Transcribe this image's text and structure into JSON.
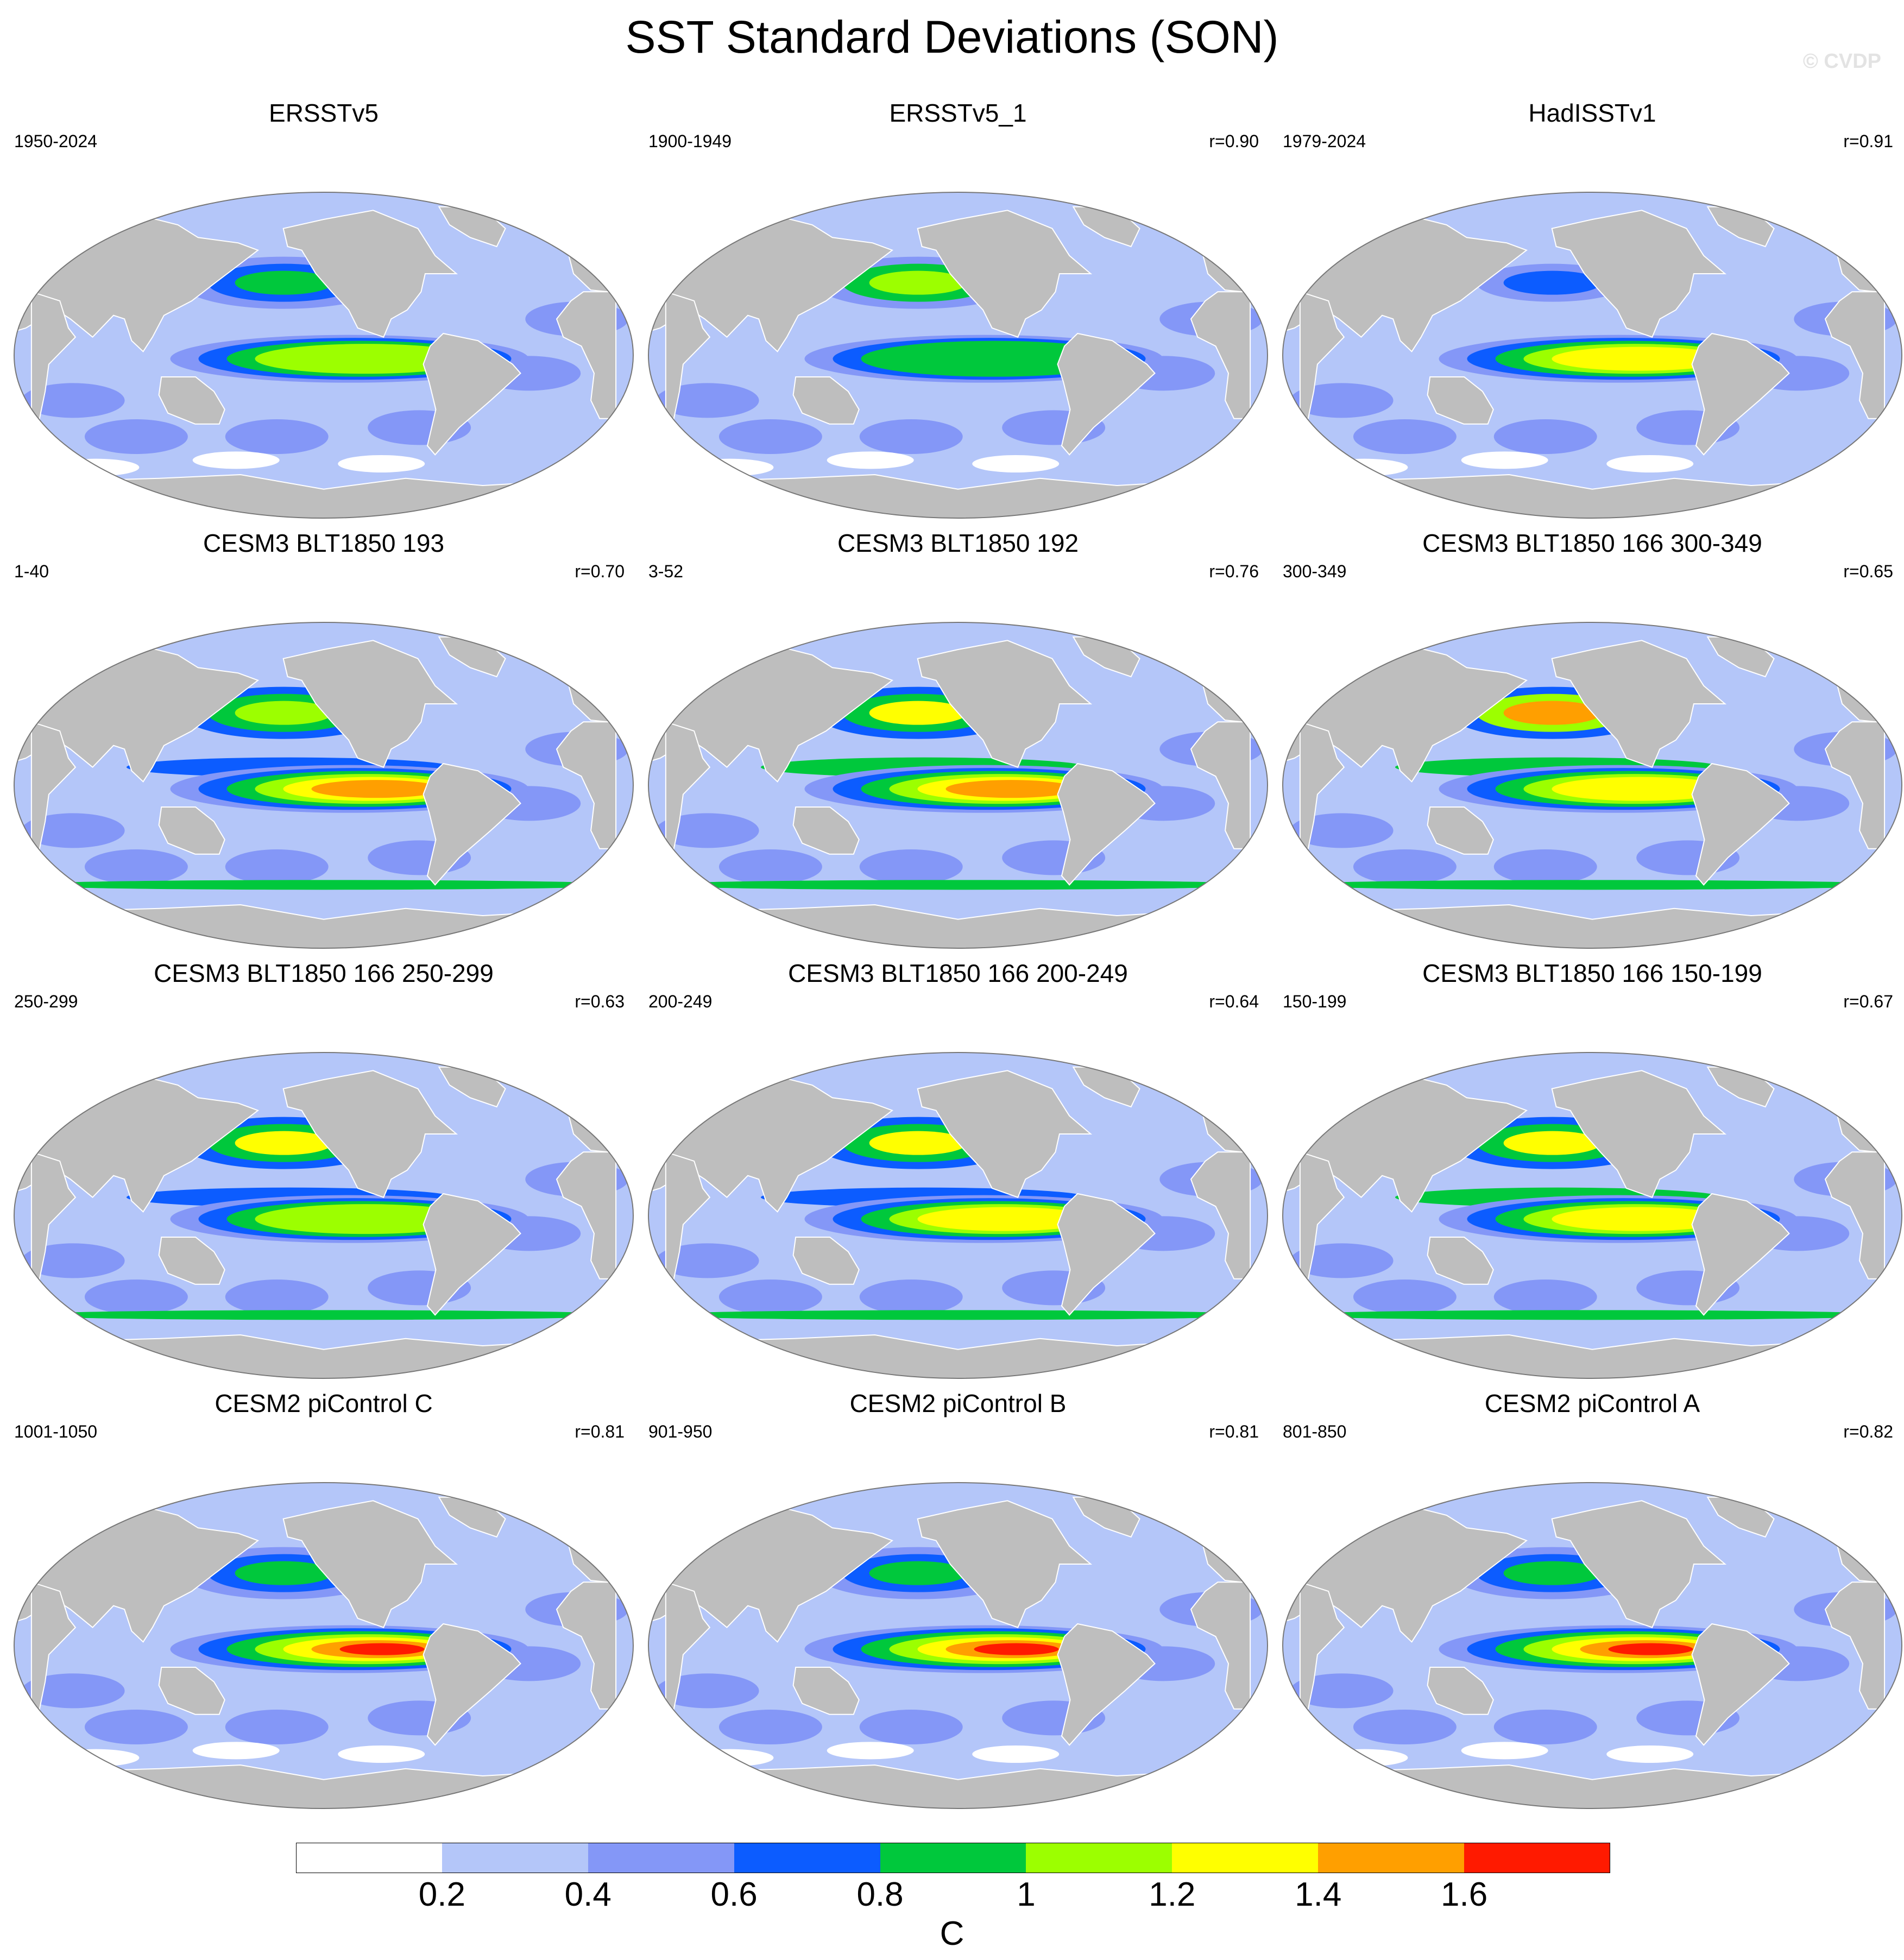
{
  "title": "SST Standard Deviations (SON)",
  "watermark": "© CVDP",
  "panels": [
    {
      "title": "ERSSTv5",
      "period": "1950-2024",
      "r": "",
      "enso": 1.1,
      "npac": 0.9,
      "nenso": 0.0,
      "southern": 0.0
    },
    {
      "title": "ERSSTv5_1",
      "period": "1900-1949",
      "r": "r=0.90",
      "enso": 1.0,
      "npac": 1.0,
      "nenso": 0.0,
      "southern": 0.0
    },
    {
      "title": "HadISSTv1",
      "period": "1979-2024",
      "r": "r=0.91",
      "enso": 1.3,
      "npac": 0.7,
      "nenso": 0.0,
      "southern": 0.0
    },
    {
      "title": "CESM3 BLT1850 193",
      "period": "1-40",
      "r": "r=0.70",
      "enso": 1.5,
      "npac": 1.1,
      "nenso": 0.6,
      "southern": 0.9
    },
    {
      "title": "CESM3 BLT1850 192",
      "period": "3-52",
      "r": "r=0.76",
      "enso": 1.6,
      "npac": 1.2,
      "nenso": 0.8,
      "southern": 0.9
    },
    {
      "title": "CESM3 BLT1850 166 300-349",
      "period": "300-349",
      "r": "r=0.65",
      "enso": 1.3,
      "npac": 1.4,
      "nenso": 0.9,
      "southern": 0.9
    },
    {
      "title": "CESM3 BLT1850 166 250-299",
      "period": "250-299",
      "r": "r=0.63",
      "enso": 1.2,
      "npac": 1.2,
      "nenso": 0.7,
      "southern": 0.9
    },
    {
      "title": "CESM3 BLT1850 166 200-249",
      "period": "200-249",
      "r": "r=0.64",
      "enso": 1.3,
      "npac": 1.2,
      "nenso": 0.7,
      "southern": 0.9
    },
    {
      "title": "CESM3 BLT1850 166 150-199",
      "period": "150-199",
      "r": "r=0.67",
      "enso": 1.3,
      "npac": 1.2,
      "nenso": 0.8,
      "southern": 0.9
    },
    {
      "title": "CESM2 piControl C",
      "period": "1001-1050",
      "r": "r=0.81",
      "enso": 1.7,
      "npac": 0.8,
      "nenso": 0.0,
      "southern": 0.0
    },
    {
      "title": "CESM2 piControl B",
      "period": "901-950",
      "r": "r=0.81",
      "enso": 1.7,
      "npac": 0.8,
      "nenso": 0.0,
      "southern": 0.0
    },
    {
      "title": "CESM2 piControl A",
      "period": "801-850",
      "r": "r=0.82",
      "enso": 1.7,
      "npac": 0.8,
      "nenso": 0.0,
      "southern": 0.0
    }
  ],
  "colorbar": {
    "units": "C",
    "labels": [
      "0.2",
      "0.4",
      "0.6",
      "0.8",
      "1",
      "1.2",
      "1.4",
      "1.6"
    ],
    "levels": [
      0.2,
      0.4,
      0.6,
      0.8,
      1.0,
      1.2,
      1.4,
      1.6
    ],
    "colors": [
      "#ffffff",
      "#b4c6f9",
      "#8497f7",
      "#0c5cff",
      "#00c83c",
      "#9cff00",
      "#ffff00",
      "#ff9f00",
      "#ff1a00"
    ]
  },
  "colors": {
    "land": "#bebebe",
    "coast": "#ffffff",
    "border": "#777777"
  }
}
